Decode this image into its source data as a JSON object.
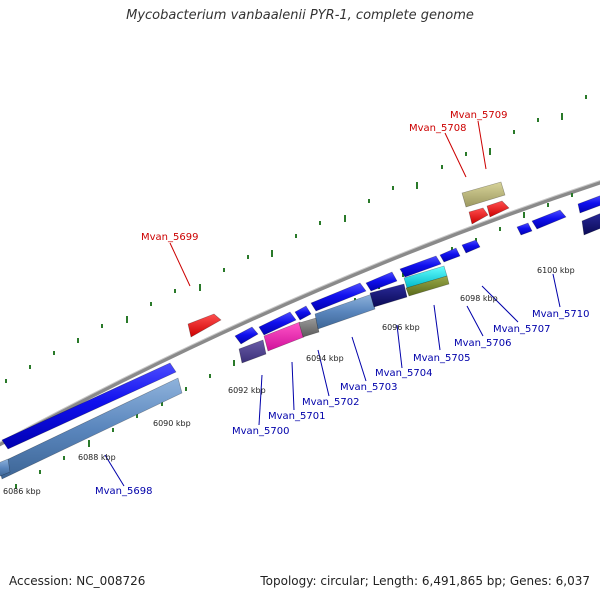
{
  "title": "Mycobacterium vanbaalenii PYR-1, complete genome",
  "footer": {
    "accession": "Accession: NC_008726",
    "summary": "Topology: circular; Length: 6,491,865 bp; Genes: 6,037"
  },
  "colors": {
    "label_blue": "#0000aa",
    "label_red": "#cc0000",
    "backbone": "#888888",
    "tick_green": "#2a7a2a"
  },
  "scale_labels": [
    "6086 kbp",
    "6088 kbp",
    "6090 kbp",
    "6092 kbp",
    "6094 kbp",
    "6096 kbp",
    "6098 kbp",
    "6100 kbp"
  ],
  "gene_labels": [
    {
      "text": "Mvan_5698",
      "color": "blue"
    },
    {
      "text": "Mvan_5699",
      "color": "red"
    },
    {
      "text": "Mvan_5700",
      "color": "blue"
    },
    {
      "text": "Mvan_5701",
      "color": "blue"
    },
    {
      "text": "Mvan_5702",
      "color": "blue"
    },
    {
      "text": "Mvan_5703",
      "color": "blue"
    },
    {
      "text": "Mvan_5704",
      "color": "blue"
    },
    {
      "text": "Mvan_5705",
      "color": "blue"
    },
    {
      "text": "Mvan_5706",
      "color": "blue"
    },
    {
      "text": "Mvan_5707",
      "color": "blue"
    },
    {
      "text": "Mvan_5708",
      "color": "red"
    },
    {
      "text": "Mvan_5709",
      "color": "red"
    },
    {
      "text": "Mvan_5710",
      "color": "blue"
    }
  ]
}
